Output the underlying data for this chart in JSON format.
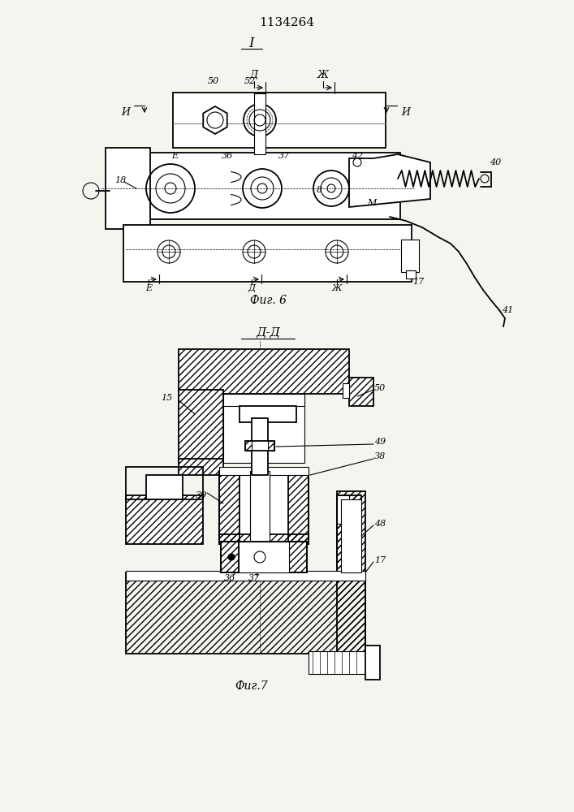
{
  "title": "1134264",
  "fig6_label": "Фиг. 6",
  "fig7_label": "Фиг.7",
  "section_label_top": "I",
  "section_dd": "Д-Д",
  "bg_color": "#f5f5f0",
  "line_color": "#000000"
}
